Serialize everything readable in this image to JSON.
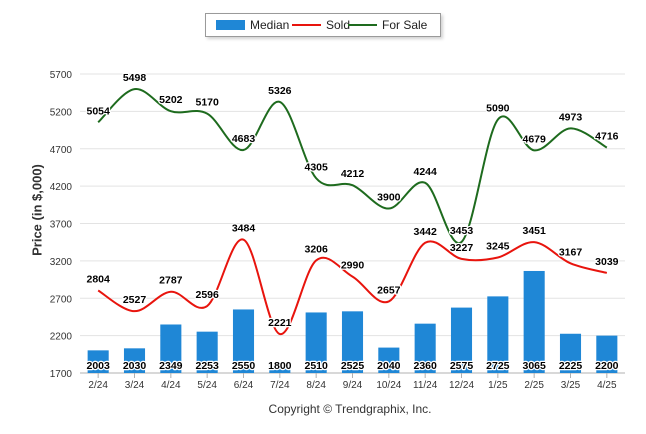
{
  "chart_data": {
    "type": "bar",
    "categories": [
      "2/24",
      "3/24",
      "4/24",
      "5/24",
      "6/24",
      "7/24",
      "8/24",
      "9/24",
      "10/24",
      "11/24",
      "12/24",
      "1/25",
      "2/25",
      "3/25",
      "4/25"
    ],
    "series": [
      {
        "name": "Median",
        "type": "bar",
        "color": "#1f87d6",
        "values": [
          2003,
          2030,
          2349,
          2253,
          2550,
          1800,
          2510,
          2525,
          2040,
          2360,
          2575,
          2725,
          3065,
          2225,
          2200
        ]
      },
      {
        "name": "Sold",
        "type": "line",
        "color": "#e8140d",
        "values": [
          2804,
          2527,
          2787,
          2596,
          3484,
          2221,
          3206,
          2990,
          2657,
          3442,
          3227,
          3245,
          3451,
          3167,
          3039
        ]
      },
      {
        "name": "For Sale",
        "type": "line",
        "color": "#1e6b1e",
        "values": [
          5054,
          5498,
          5202,
          5170,
          4683,
          5326,
          4305,
          4212,
          3900,
          4244,
          3453,
          5090,
          4679,
          4973,
          4716
        ]
      }
    ],
    "ylabel": "Price (in $,000)",
    "xlabel": "",
    "ylim": [
      1700,
      5700
    ],
    "yticks": [
      1700,
      2200,
      2700,
      3200,
      3700,
      4200,
      4700,
      5200,
      5700
    ],
    "grid": true,
    "legend_position": "top"
  },
  "footer": "Copyright © Trendgraphix, Inc."
}
